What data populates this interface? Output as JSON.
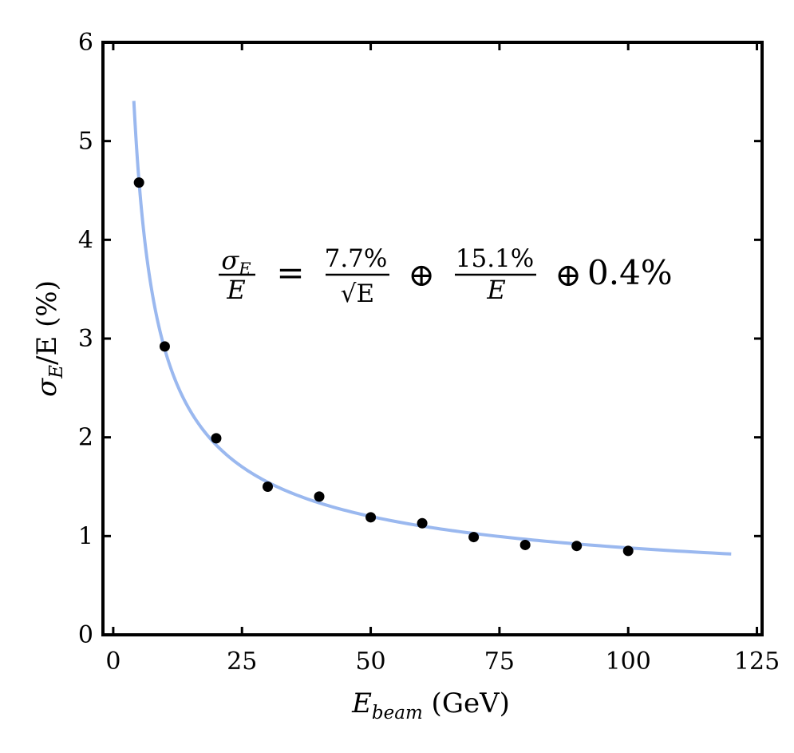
{
  "chart_data": {
    "type": "scatter",
    "xlabel": {
      "main": "E",
      "sub": "beam",
      "unit": " (GeV)"
    },
    "ylabel": {
      "main": "σ",
      "sub": "E",
      "rest": "/E (%)"
    },
    "xlim": [
      -2,
      126
    ],
    "ylim": [
      0,
      6
    ],
    "xticks": [
      0,
      25,
      50,
      75,
      100,
      125
    ],
    "yticks": [
      0,
      1,
      2,
      3,
      4,
      5,
      6
    ],
    "grid": false,
    "series": [
      {
        "name": "measurements",
        "kind": "scatter",
        "color": "#000000",
        "x": [
          5,
          10,
          20,
          30,
          40,
          50,
          60,
          70,
          80,
          90,
          100
        ],
        "y": [
          4.58,
          2.92,
          1.99,
          1.5,
          1.4,
          1.19,
          1.13,
          0.99,
          0.91,
          0.9,
          0.85
        ]
      },
      {
        "name": "fit",
        "kind": "line",
        "color": "#9ab8ef",
        "stochastic_pct": 7.7,
        "noise_pct": 15.1,
        "constant_pct": 0.4,
        "x_range": [
          4,
          120
        ]
      }
    ],
    "annotation": {
      "lhs_num": "σ",
      "lhs_num_sub": "E",
      "lhs_den": "E",
      "equals": "=",
      "term1_num": "7.7%",
      "term1_den": "√E",
      "oplus": "⊕",
      "term2_num": "15.1%",
      "term2_den": "E",
      "term3": "0.4%"
    }
  }
}
